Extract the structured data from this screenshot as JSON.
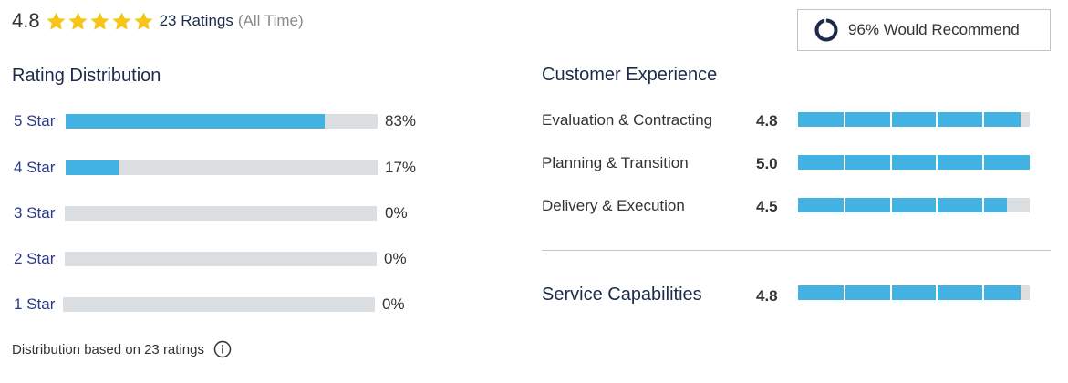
{
  "header": {
    "overall_rating": "4.8",
    "stars_filled": 5,
    "stars_total": 5,
    "ratings_count": "23 Ratings",
    "period": "(All Time)"
  },
  "recommend": {
    "label": "96% Would Recommend",
    "percent": 96
  },
  "distribution": {
    "title": "Rating Distribution",
    "rows": [
      {
        "label": "5 Star",
        "percent_text": "83%",
        "fraction": 0.83
      },
      {
        "label": "4 Star",
        "percent_text": "17%",
        "fraction": 0.17
      },
      {
        "label": "3 Star",
        "percent_text": "0%",
        "fraction": 0
      },
      {
        "label": "2 Star",
        "percent_text": "0%",
        "fraction": 0
      },
      {
        "label": "1 Star",
        "percent_text": "0%",
        "fraction": 0
      }
    ],
    "footnote": "Distribution based on 23 ratings"
  },
  "customer_experience": {
    "title": "Customer Experience",
    "items": [
      {
        "label": "Evaluation & Contracting",
        "score": "4.8",
        "value": 4.8
      },
      {
        "label": "Planning & Transition",
        "score": "5.0",
        "value": 5.0
      },
      {
        "label": "Delivery & Execution",
        "score": "4.5",
        "value": 4.5
      }
    ]
  },
  "service_capabilities": {
    "label": "Service Capabilities",
    "score": "4.8",
    "value": 4.8
  },
  "colors": {
    "accent": "#41b2e2",
    "track": "#dcdfe1",
    "star": "#f5c518",
    "ring": "#1c2b4a",
    "heading": "#1c2b4a"
  }
}
